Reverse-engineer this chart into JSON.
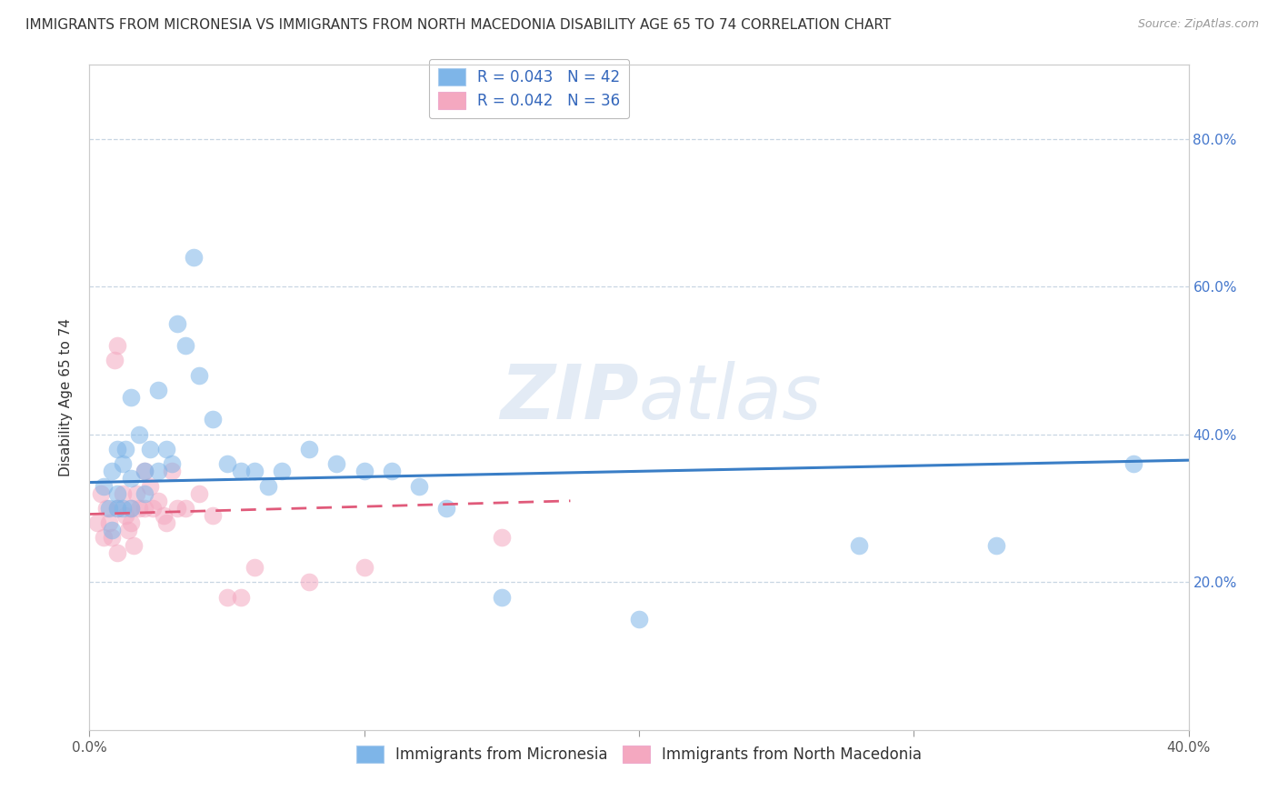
{
  "title": "IMMIGRANTS FROM MICRONESIA VS IMMIGRANTS FROM NORTH MACEDONIA DISABILITY AGE 65 TO 74 CORRELATION CHART",
  "source": "Source: ZipAtlas.com",
  "ylabel": "Disability Age 65 to 74",
  "xlim": [
    0.0,
    0.4
  ],
  "ylim": [
    0.0,
    0.9
  ],
  "xticks": [
    0.0,
    0.1,
    0.2,
    0.3,
    0.4
  ],
  "yticks": [
    0.2,
    0.4,
    0.6,
    0.8
  ],
  "xticklabels": [
    "0.0%",
    "",
    "",
    "",
    "40.0%"
  ],
  "yticklabels_right": [
    "20.0%",
    "40.0%",
    "60.0%",
    "80.0%"
  ],
  "micronesia_color": "#7EB5E8",
  "macedonia_color": "#F4A8C0",
  "micronesia_line_color": "#3A7EC6",
  "macedonia_line_color": "#E05A7A",
  "micronesia_R": "0.043",
  "micronesia_N": "42",
  "macedonia_R": "0.042",
  "macedonia_N": "36",
  "micronesia_label": "Immigrants from Micronesia",
  "macedonia_label": "Immigrants from North Macedonia",
  "micronesia_x": [
    0.005,
    0.007,
    0.008,
    0.008,
    0.01,
    0.01,
    0.01,
    0.012,
    0.012,
    0.013,
    0.015,
    0.015,
    0.015,
    0.018,
    0.02,
    0.02,
    0.022,
    0.025,
    0.025,
    0.028,
    0.03,
    0.032,
    0.035,
    0.038,
    0.04,
    0.045,
    0.05,
    0.055,
    0.06,
    0.065,
    0.07,
    0.08,
    0.09,
    0.1,
    0.11,
    0.12,
    0.13,
    0.15,
    0.2,
    0.28,
    0.33,
    0.38
  ],
  "micronesia_y": [
    0.33,
    0.3,
    0.27,
    0.35,
    0.32,
    0.3,
    0.38,
    0.36,
    0.3,
    0.38,
    0.34,
    0.3,
    0.45,
    0.4,
    0.35,
    0.32,
    0.38,
    0.35,
    0.46,
    0.38,
    0.36,
    0.55,
    0.52,
    0.64,
    0.48,
    0.42,
    0.36,
    0.35,
    0.35,
    0.33,
    0.35,
    0.38,
    0.36,
    0.35,
    0.35,
    0.33,
    0.3,
    0.18,
    0.15,
    0.25,
    0.25,
    0.36
  ],
  "macedonia_x": [
    0.003,
    0.004,
    0.005,
    0.006,
    0.007,
    0.008,
    0.009,
    0.01,
    0.01,
    0.01,
    0.012,
    0.013,
    0.014,
    0.015,
    0.015,
    0.016,
    0.017,
    0.018,
    0.02,
    0.02,
    0.022,
    0.023,
    0.025,
    0.027,
    0.028,
    0.03,
    0.032,
    0.035,
    0.04,
    0.045,
    0.05,
    0.055,
    0.06,
    0.08,
    0.1,
    0.15
  ],
  "macedonia_y": [
    0.28,
    0.32,
    0.26,
    0.3,
    0.28,
    0.26,
    0.5,
    0.52,
    0.3,
    0.24,
    0.32,
    0.29,
    0.27,
    0.3,
    0.28,
    0.25,
    0.32,
    0.3,
    0.35,
    0.3,
    0.33,
    0.3,
    0.31,
    0.29,
    0.28,
    0.35,
    0.3,
    0.3,
    0.32,
    0.29,
    0.18,
    0.18,
    0.22,
    0.2,
    0.22,
    0.26
  ],
  "micronesia_trend_x": [
    0.0,
    0.4
  ],
  "micronesia_trend_y": [
    0.335,
    0.365
  ],
  "macedonia_trend_x": [
    0.0,
    0.175
  ],
  "macedonia_trend_y": [
    0.292,
    0.31
  ],
  "watermark_zip": "ZIP",
  "watermark_atlas": "atlas",
  "grid_color": "#BBCCDD",
  "bg_color": "#FFFFFF",
  "title_fontsize": 11,
  "axis_fontsize": 11,
  "tick_fontsize": 11,
  "legend_fontsize": 12
}
